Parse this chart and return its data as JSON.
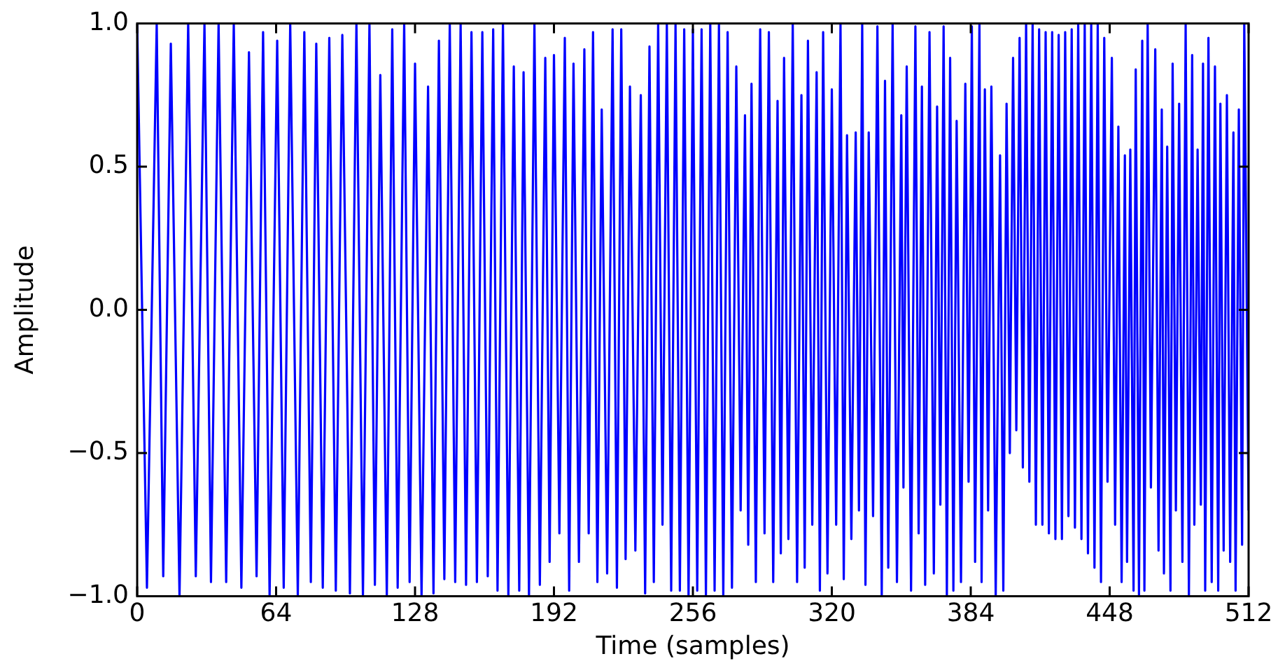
{
  "chart_data": {
    "type": "line",
    "xlabel": "Time (samples)",
    "ylabel": "Amplitude",
    "xlim": [
      0,
      512
    ],
    "xticks": [
      0,
      64,
      128,
      192,
      256,
      320,
      384,
      448,
      512
    ],
    "ylim": [
      -1,
      1
    ],
    "yticks": [
      {
        "value": -1,
        "label": "−1.0"
      },
      {
        "value": -0.5,
        "label": "−0.5"
      },
      {
        "value": 0,
        "label": "0.0"
      },
      {
        "value": 0.5,
        "label": "0.5"
      },
      {
        "value": 1,
        "label": "1.0"
      }
    ],
    "grid": false,
    "legend": false,
    "marker": "none",
    "line_style": "solid",
    "series": [
      {
        "color": "#0000ff",
        "x": [
          0,
          4.5,
          9,
          12,
          15.5,
          19.5,
          23.5,
          27,
          31,
          34,
          37.5,
          41,
          44.5,
          48,
          51.5,
          55,
          58,
          61,
          64.5,
          67.5,
          70.5,
          74,
          77,
          80,
          82.5,
          85.5,
          88.5,
          91.5,
          94.5,
          98,
          101,
          104,
          107,
          109.5,
          112,
          115,
          117.5,
          120,
          123,
          125.5,
          128,
          131,
          134,
          136.5,
          139,
          141.5,
          144,
          146.5,
          149,
          151.5,
          154,
          156.5,
          159,
          161.5,
          164,
          166,
          168.5,
          171,
          173.5,
          176,
          178,
          180.5,
          183,
          185.5,
          188,
          190,
          192,
          194.5,
          197,
          199,
          201,
          203.5,
          206,
          208,
          210,
          212,
          214,
          216.5,
          219,
          221,
          223,
          225,
          227,
          229.5,
          232,
          234,
          236,
          238,
          240,
          242,
          244,
          246,
          248,
          250,
          252,
          254,
          256,
          258,
          260,
          262,
          264,
          266,
          268,
          270,
          272,
          274,
          276,
          278,
          280,
          281.5,
          283,
          285,
          287,
          289,
          291,
          293,
          295,
          296.5,
          298,
          300,
          302,
          304,
          306,
          307.5,
          309,
          311,
          313,
          314.5,
          316,
          318,
          320,
          322,
          324,
          325.5,
          327,
          329,
          331,
          332.5,
          334,
          335.5,
          337,
          339,
          341,
          343,
          344.5,
          346,
          348,
          350,
          352,
          353,
          354.5,
          356.5,
          358.5,
          360,
          361.5,
          363,
          365,
          367,
          368.5,
          370,
          371.5,
          373,
          374.5,
          376,
          377.5,
          379.5,
          381.5,
          383,
          384.5,
          386,
          388,
          389,
          390.5,
          392,
          393.5,
          395.5,
          397.5,
          399,
          400.5,
          402,
          403.5,
          405,
          406.5,
          408,
          409.5,
          411,
          412.5,
          414,
          415.5,
          417,
          418.5,
          420,
          421.5,
          423,
          424.5,
          426,
          427.5,
          429,
          430.5,
          432,
          433.5,
          435,
          436.5,
          438,
          439.5,
          441,
          442.5,
          444,
          445.5,
          447,
          449,
          450.5,
          452,
          453.5,
          455,
          456,
          457.5,
          459,
          460,
          461.5,
          463,
          464,
          465.5,
          467,
          469,
          470.5,
          472,
          473,
          474.5,
          476,
          477,
          478.5,
          480,
          481.5,
          483,
          484.5,
          486,
          487,
          488.5,
          490,
          491,
          492,
          493.5,
          495,
          496.5,
          498,
          499,
          500.5,
          502,
          503.5,
          505,
          506,
          507.5,
          509,
          510,
          512
        ],
        "values": [
          1,
          -0.97,
          1,
          -0.93,
          0.93,
          -1,
          1,
          -0.93,
          1,
          -0.95,
          1,
          -0.95,
          1,
          -0.97,
          0.9,
          -0.93,
          0.97,
          -1,
          0.94,
          -0.97,
          1,
          -1,
          0.97,
          -0.95,
          0.93,
          -0.97,
          0.95,
          -0.98,
          0.96,
          -0.99,
          1,
          -1,
          1,
          -0.96,
          0.82,
          -1,
          0.98,
          -0.97,
          1,
          -0.95,
          0.86,
          -1,
          0.78,
          -0.99,
          0.94,
          -0.94,
          1,
          -0.95,
          1,
          -0.96,
          0.97,
          -0.95,
          0.97,
          -0.93,
          0.98,
          -0.98,
          1,
          -1,
          0.85,
          -0.98,
          0.83,
          -1,
          1,
          -0.96,
          0.88,
          -0.88,
          0.89,
          -0.78,
          0.95,
          -0.98,
          0.86,
          -0.88,
          0.91,
          -0.78,
          0.97,
          -0.95,
          0.7,
          -0.92,
          0.98,
          -0.97,
          0.98,
          -0.87,
          0.78,
          -0.84,
          0.75,
          -0.99,
          0.92,
          -0.95,
          1,
          -0.75,
          1,
          -0.98,
          1,
          -0.98,
          0.98,
          -1,
          0.98,
          -0.98,
          0.98,
          -1,
          1,
          -0.98,
          1,
          -1,
          0.97,
          -0.97,
          0.85,
          -0.7,
          0.68,
          -0.82,
          0.79,
          -0.95,
          0.98,
          -0.78,
          0.97,
          -0.95,
          0.73,
          -0.85,
          0.88,
          -0.8,
          1,
          -0.95,
          0.75,
          -0.9,
          0.94,
          -0.75,
          0.83,
          -0.98,
          0.97,
          -0.92,
          0.77,
          -0.75,
          1,
          -0.94,
          0.61,
          -0.8,
          0.62,
          -0.7,
          1,
          -0.96,
          0.62,
          -0.72,
          0.99,
          -1,
          0.8,
          -0.9,
          1,
          -0.95,
          0.68,
          -0.62,
          0.85,
          -0.98,
          0.99,
          -0.78,
          0.78,
          -0.96,
          0.97,
          -0.92,
          0.71,
          -0.68,
          0.99,
          -1,
          0.88,
          -0.98,
          0.66,
          -0.95,
          0.79,
          -0.6,
          0.99,
          -0.88,
          1,
          -0.95,
          0.77,
          -0.7,
          0.78,
          -1,
          0.54,
          -0.98,
          0.72,
          -0.5,
          0.88,
          -0.42,
          0.95,
          -0.55,
          1,
          -0.6,
          1,
          -0.75,
          0.98,
          -0.75,
          0.97,
          -0.78,
          0.97,
          -0.8,
          0.96,
          -0.8,
          0.97,
          -0.72,
          0.98,
          -0.76,
          1,
          -0.8,
          1,
          -0.85,
          1,
          -0.9,
          1,
          -0.95,
          0.95,
          -0.6,
          0.88,
          -0.75,
          0.64,
          -0.95,
          0.54,
          -0.88,
          0.56,
          -0.98,
          0.84,
          -1,
          0.94,
          -0.98,
          1,
          -0.62,
          0.91,
          -0.84,
          0.7,
          -0.92,
          0.57,
          -0.98,
          0.86,
          -0.7,
          0.72,
          -0.88,
          1,
          -1,
          0.89,
          -0.75,
          0.56,
          -0.68,
          0.86,
          -0.98,
          0.95,
          -0.95,
          0.85,
          -0.98,
          0.72,
          -0.84,
          0.75,
          -0.88,
          0.62,
          -0.98,
          0.7,
          -0.82,
          1,
          -0.7
        ]
      }
    ]
  }
}
